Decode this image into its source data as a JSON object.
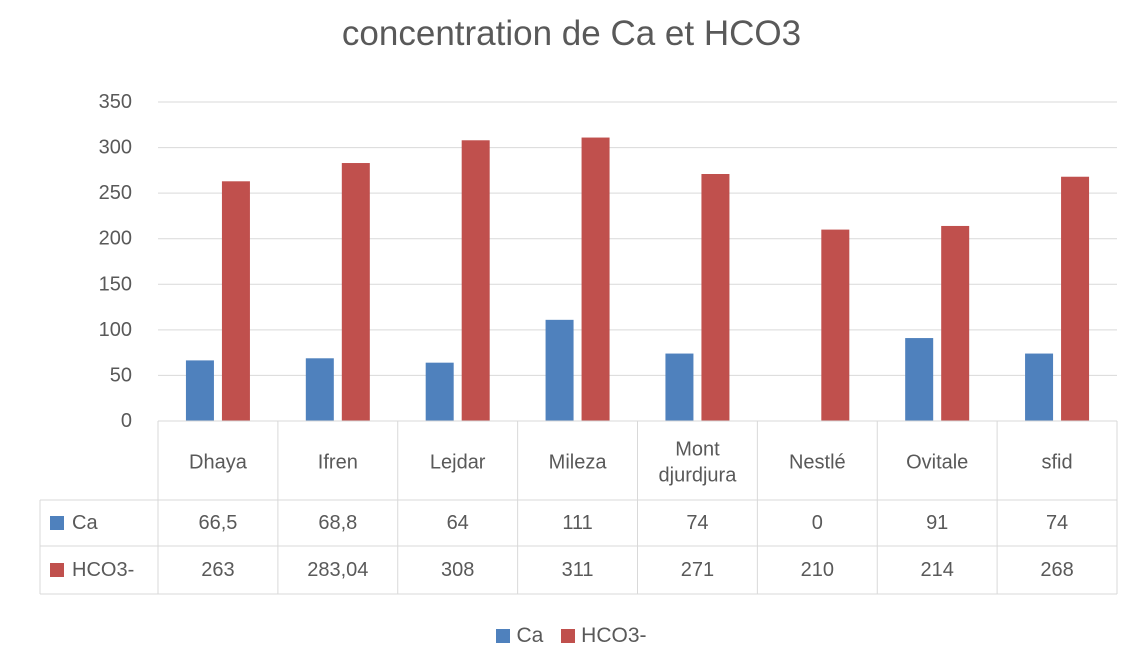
{
  "chart_data": {
    "type": "bar",
    "title": "concentration de Ca et HCO3",
    "categories": [
      "Dhaya",
      "Ifren",
      "Lejdar",
      "Mileza",
      "Mont djurdjura",
      "Nestlé",
      "Ovitale",
      "sfid"
    ],
    "series": [
      {
        "name": "Ca",
        "color": "#4F81BD",
        "values": [
          66.5,
          68.8,
          64,
          111,
          74,
          0,
          91,
          74
        ],
        "labels": [
          "66,5",
          "68,8",
          "64",
          "111",
          "74",
          "0",
          "91",
          "74"
        ]
      },
      {
        "name": "HCO3-",
        "color": "#C0504D",
        "values": [
          263,
          283.04,
          308,
          311,
          271,
          210,
          214,
          268
        ],
        "labels": [
          "263",
          "283,04",
          "308",
          "311",
          "271",
          "210",
          "214",
          "268"
        ]
      }
    ],
    "ylim": [
      0,
      350
    ],
    "yticks": [
      0,
      50,
      100,
      150,
      200,
      250,
      300,
      350
    ],
    "grid": true,
    "legend": "bottom",
    "data_table": true
  }
}
